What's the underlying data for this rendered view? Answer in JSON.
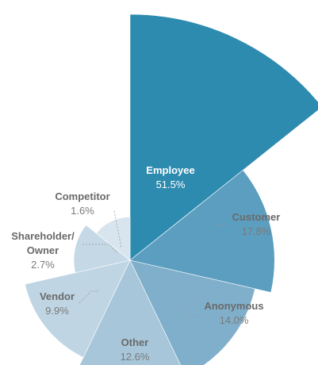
{
  "chart_data": {
    "type": "pie",
    "variant": "polar-area",
    "labels": [
      "Employee",
      "Customer",
      "Anonymous",
      "Other",
      "Vendor",
      "Shareholder/ Owner",
      "Competitor"
    ],
    "values": [
      51.5,
      17.8,
      14.0,
      12.6,
      9.9,
      2.7,
      1.6
    ],
    "value_labels": [
      "51.5%",
      "17.8%",
      "14.0%",
      "12.6%",
      "9.9%",
      "2.7%",
      "1.6%"
    ],
    "colors": [
      "#2e8bb0",
      "#5b9ebf",
      "#80afcb",
      "#a7c6da",
      "#bfd5e3",
      "#c5d8e5",
      "#d9e5ee"
    ],
    "label_colors": {
      "inside": "#ffffff",
      "outside_name": "#6a6a6a",
      "outside_value": "#7a7a7a",
      "leader": "#9a9a9a"
    },
    "title": "",
    "legend": "none"
  }
}
